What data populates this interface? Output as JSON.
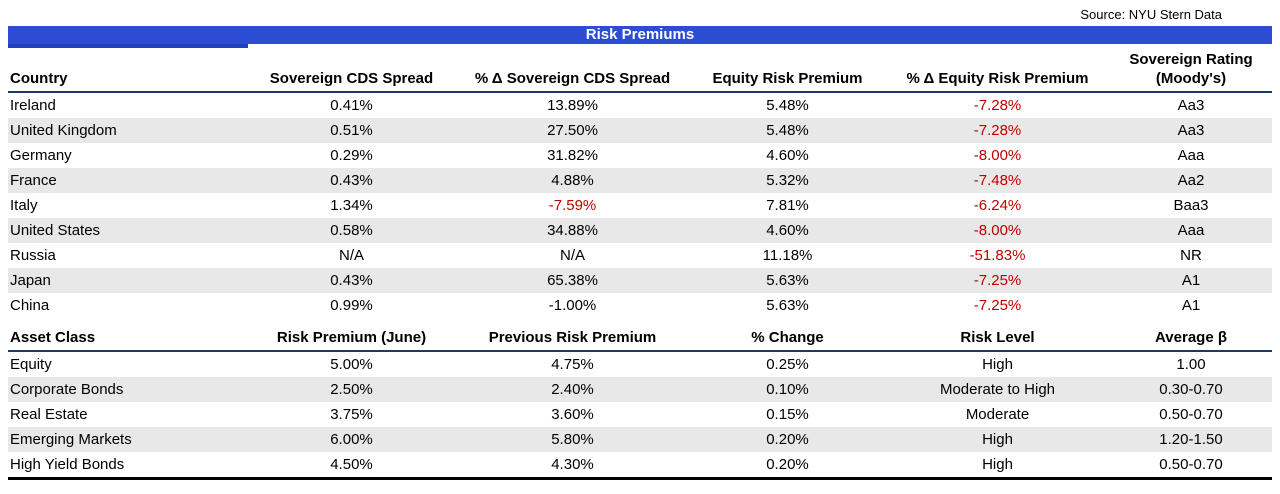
{
  "source_note": "Source: NYU Stern Data",
  "title": "Risk Premiums",
  "colors": {
    "title_bar_blue": "#2c4cd3",
    "header_underline_navy": "#1f3864",
    "stripe_gray": "#e8e8e8",
    "negative_red": "#c00000",
    "bottom_border_black": "#000000"
  },
  "country_table": {
    "headers": {
      "country": "Country",
      "cds": "Sovereign CDS Spread",
      "cds_chg": "% Δ Sovereign CDS Spread",
      "erp": "Equity Risk Premium",
      "erp_chg": "% Δ Equity Risk Premium",
      "rating_line1": "Sovereign Rating",
      "rating_line2": "(Moody's)"
    },
    "rows": [
      {
        "country": "Ireland",
        "cds": "0.41%",
        "cds_chg": "13.89%",
        "erp": "5.48%",
        "erp_chg": "-7.28%",
        "rating": "Aa3"
      },
      {
        "country": "United Kingdom",
        "cds": "0.51%",
        "cds_chg": "27.50%",
        "erp": "5.48%",
        "erp_chg": "-7.28%",
        "rating": "Aa3"
      },
      {
        "country": "Germany",
        "cds": "0.29%",
        "cds_chg": "31.82%",
        "erp": "4.60%",
        "erp_chg": "-8.00%",
        "rating": "Aaa"
      },
      {
        "country": "France",
        "cds": "0.43%",
        "cds_chg": "4.88%",
        "erp": "5.32%",
        "erp_chg": "-7.48%",
        "rating": "Aa2"
      },
      {
        "country": "Italy",
        "cds": "1.34%",
        "cds_chg": "-7.59%",
        "erp": "7.81%",
        "erp_chg": "-6.24%",
        "rating": "Baa3"
      },
      {
        "country": "United States",
        "cds": "0.58%",
        "cds_chg": "34.88%",
        "erp": "4.60%",
        "erp_chg": "-8.00%",
        "rating": "Aaa"
      },
      {
        "country": "Russia",
        "cds": "N/A",
        "cds_chg": "N/A",
        "erp": "11.18%",
        "erp_chg": "-51.83%",
        "rating": "NR"
      },
      {
        "country": "Japan",
        "cds": "0.43%",
        "cds_chg": "65.38%",
        "erp": "5.63%",
        "erp_chg": "-7.25%",
        "rating": "A1"
      },
      {
        "country": "China",
        "cds": "0.99%",
        "cds_chg": "-1.00%",
        "erp": "5.63%",
        "erp_chg": "-7.25%",
        "rating": "A1"
      }
    ]
  },
  "asset_table": {
    "headers": {
      "asset": "Asset Class",
      "premium": "Risk Premium (June)",
      "prev": "Previous Risk Premium",
      "change": "% Change",
      "level": "Risk Level",
      "beta": "Average β"
    },
    "rows": [
      {
        "asset": "Equity",
        "premium": "5.00%",
        "prev": "4.75%",
        "change": "0.25%",
        "level": "High",
        "beta": "1.00"
      },
      {
        "asset": "Corporate Bonds",
        "premium": "2.50%",
        "prev": "2.40%",
        "change": "0.10%",
        "level": "Moderate to High",
        "beta": "0.30-0.70"
      },
      {
        "asset": "Real Estate",
        "premium": "3.75%",
        "prev": "3.60%",
        "change": "0.15%",
        "level": "Moderate",
        "beta": "0.50-0.70"
      },
      {
        "asset": "Emerging Markets",
        "premium": "6.00%",
        "prev": "5.80%",
        "change": "0.20%",
        "level": "High",
        "beta": "1.20-1.50"
      },
      {
        "asset": "High Yield Bonds",
        "premium": "4.50%",
        "prev": "4.30%",
        "change": "0.20%",
        "level": "High",
        "beta": "0.50-0.70"
      }
    ]
  }
}
